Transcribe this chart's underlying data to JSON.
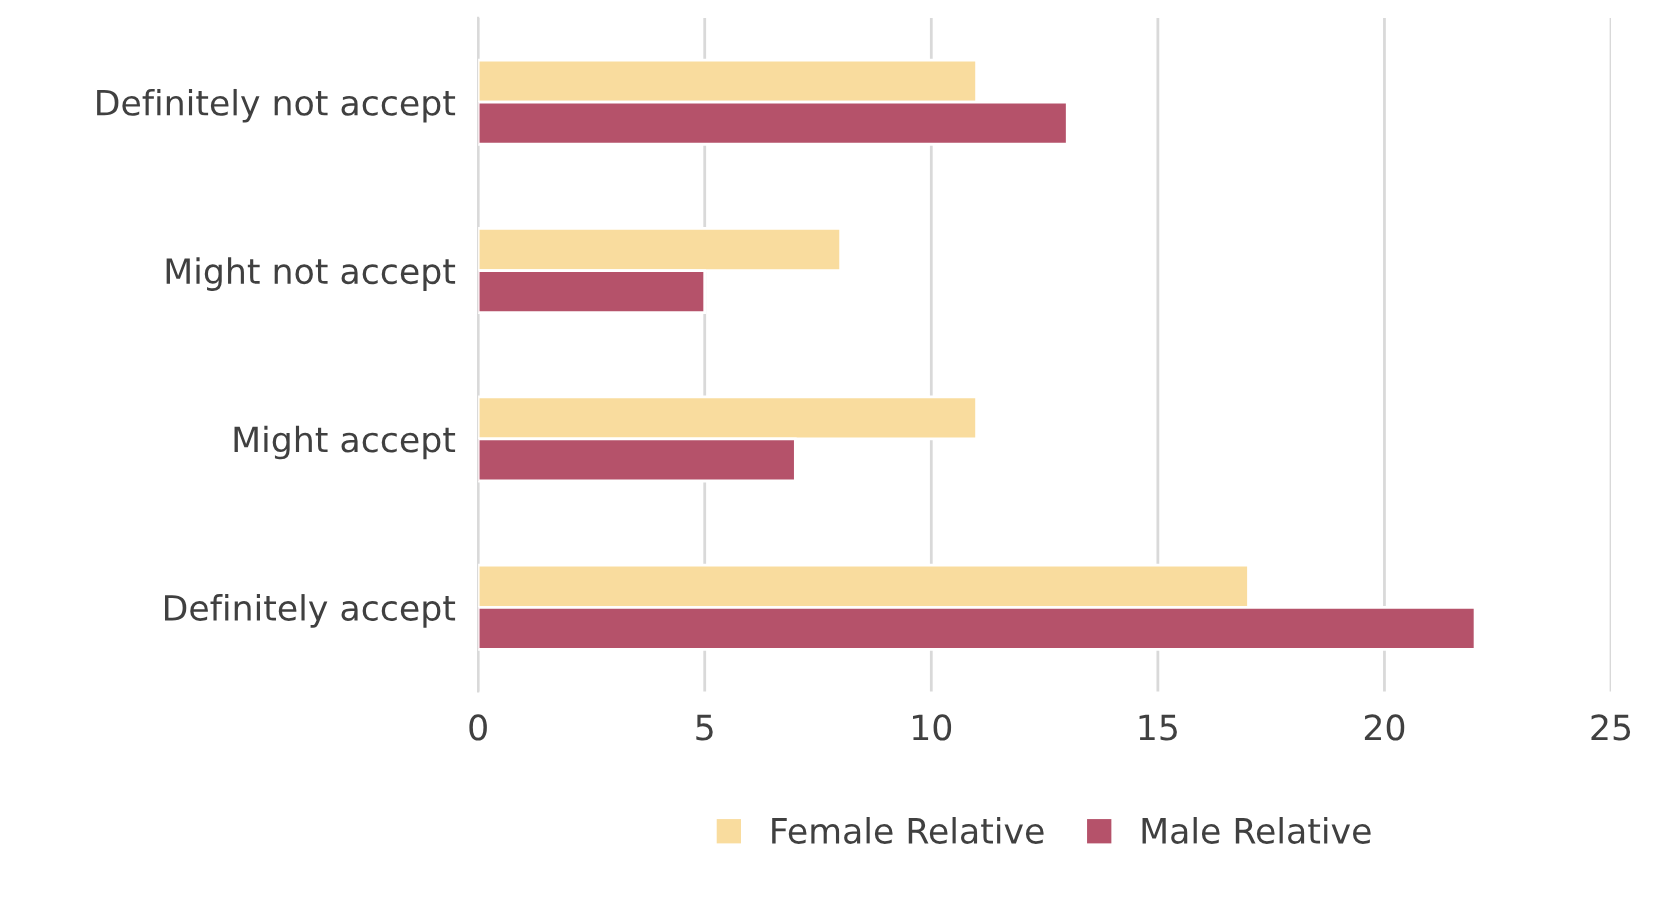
{
  "chart_data": {
    "type": "bar",
    "orientation": "horizontal",
    "categories": [
      "Definitely not accept",
      "Might not accept",
      "Might accept",
      "Definitely accept"
    ],
    "series": [
      {
        "name": "Female Relative",
        "color": "#f9dc9e",
        "values": [
          11,
          8,
          11,
          17
        ]
      },
      {
        "name": "Male Relative",
        "color": "#b5526a",
        "values": [
          13,
          5,
          7,
          22
        ]
      }
    ],
    "xlim": [
      0,
      25
    ],
    "xticks": [
      0,
      5,
      10,
      15,
      20,
      25
    ],
    "grid": "x",
    "legend": "bottom"
  }
}
